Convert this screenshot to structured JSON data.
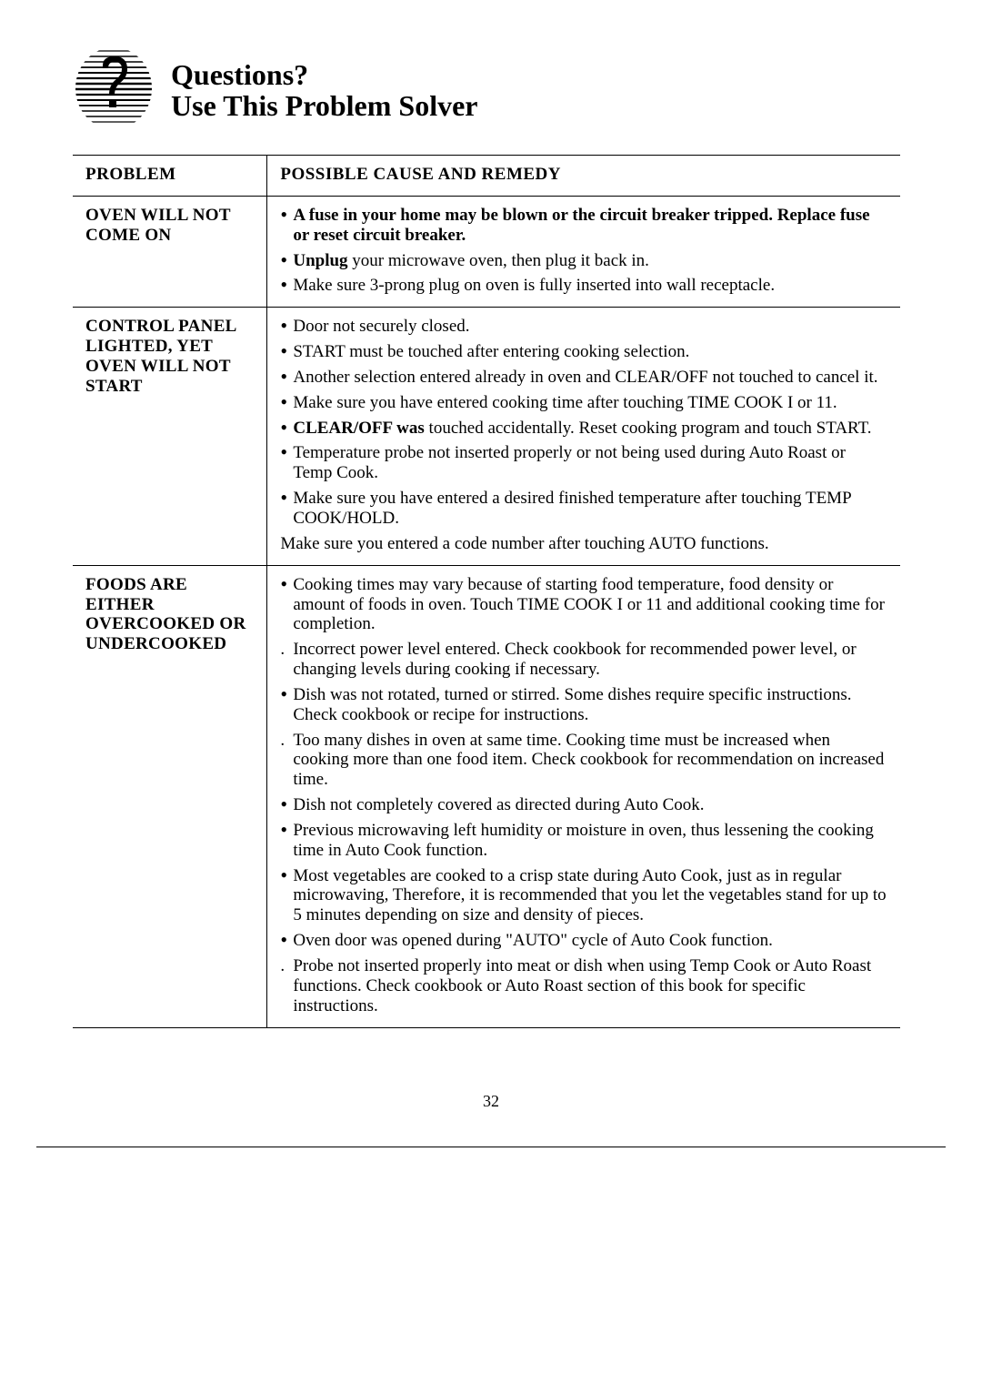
{
  "header": {
    "title_line1": "Questions?",
    "title_line2": "Use This Problem Solver"
  },
  "table": {
    "col1_header": "PROBLEM",
    "col2_header": "POSSIBLE CAUSE AND REMEDY",
    "rows": [
      {
        "problem": "OVEN WILL NOT COME ON",
        "remedies": [
          {
            "bullet": "•",
            "html": "<span class='bold'>A fuse in your home may be blown or the circuit breaker tripped. Replace fuse or reset circuit breaker.</span>"
          },
          {
            "bullet": "•",
            "html": "<span class='bold'>Unplug</span> your microwave oven, then plug it back in."
          },
          {
            "bullet": "•",
            "html": "Make sure 3-prong plug on oven is fully inserted into wall receptacle."
          }
        ]
      },
      {
        "problem": "CONTROL PANEL LIGHTED, YET OVEN WILL NOT START",
        "remedies": [
          {
            "bullet": "•",
            "html": "Door not securely closed."
          },
          {
            "bullet": "•",
            "html": "START must be touched after entering cooking selection."
          },
          {
            "bullet": "•",
            "html": "Another selection entered already in oven and CLEAR/OFF not touched to cancel it."
          },
          {
            "bullet": "•",
            "html": "Make sure you have entered cooking time after touching TIME COOK I or 11."
          },
          {
            "bullet": "•",
            "html": "<span class='bold'>CLEAR/OFF was</span> touched accidentally. Reset cooking program and touch START."
          },
          {
            "bullet": "•",
            "html": "Temperature probe not inserted properly or not being used during Auto Roast or Temp Cook."
          },
          {
            "bullet": "•",
            "html": "Make sure you have entered a desired finished temperature after touching TEMP COOK/HOLD."
          },
          {
            "bullet": "",
            "nobullet": true,
            "html": "Make sure you entered a code number after touching AUTO functions."
          }
        ]
      },
      {
        "problem": "FOODS ARE EITHER OVERCOOKED OR UNDERCOOKED",
        "remedies": [
          {
            "bullet": "•",
            "html": "Cooking times may vary because of starting food temperature, food density or amount of foods in oven. Touch TIME COOK I or 11 and additional cooking time for completion."
          },
          {
            "bullet": ".",
            "low": true,
            "html": "Incorrect power level entered. Check cookbook for recommended power level, or changing levels during cooking if necessary."
          },
          {
            "bullet": "•",
            "html": "Dish was not rotated, turned or stirred. Some dishes require specific instructions. Check cookbook or recipe for instructions."
          },
          {
            "bullet": ".",
            "low": true,
            "html": "Too many dishes in oven at same time. Cooking time must be increased when cooking more than one food item. Check cookbook for recommendation on increased time."
          },
          {
            "bullet": "•",
            "html": "Dish not completely covered as directed during Auto Cook."
          },
          {
            "bullet": "•",
            "html": "Previous microwaving left humidity or moisture in oven, thus lessening the cooking time in Auto Cook function."
          },
          {
            "bullet": "•",
            "html": "Most vegetables are cooked to a crisp state during Auto Cook, just as in regular microwaving, Therefore, it is recommended that you let the vegetables stand for up to 5 minutes depending on size and density of pieces."
          },
          {
            "bullet": "•",
            "html": "Oven door was opened during \"AUTO\" cycle of Auto Cook function."
          },
          {
            "bullet": ".",
            "low": true,
            "html": "Probe not inserted properly into meat or dish when using Temp Cook or Auto Roast functions. Check cookbook or Auto Roast section of this book for specific instructions."
          }
        ]
      }
    ]
  },
  "page_number": "32",
  "colors": {
    "text": "#000000",
    "background": "#ffffff",
    "border": "#000000"
  },
  "fonts": {
    "body_family": "Times New Roman",
    "body_size_pt": 14,
    "header_size_pt": 24
  }
}
